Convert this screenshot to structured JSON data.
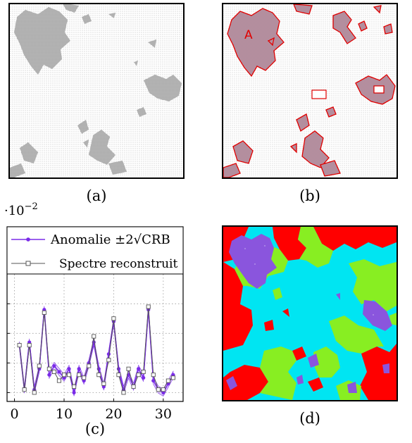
{
  "captions": {
    "a": "(a)",
    "b": "(b)",
    "c": "(c)",
    "d": "(d)"
  },
  "region_label": "A",
  "colors": {
    "gray": "#9a9a9a",
    "outline_red": "#e00000",
    "fill_pink": "#c8a0b0",
    "seg_red": "#ff0000",
    "seg_cyan": "#00e5f2",
    "seg_green": "#88ee22",
    "seg_purple": "#8a55dd",
    "line_purple": "#7a2be8",
    "line_gray": "#555555"
  },
  "chart_data": {
    "type": "line",
    "scale_label": "·10",
    "scale_exponent": "−2",
    "x_ticks": [
      "0",
      "10",
      "20",
      "30"
    ],
    "x_tick_values": [
      0,
      10,
      20,
      30
    ],
    "xlim": [
      -1.5,
      34
    ],
    "ylim": [
      -0.3,
      5.6
    ],
    "y_tick_values": [
      0,
      1,
      2,
      3
    ],
    "grid": true,
    "legend_position": "top",
    "series": [
      {
        "name": "Anomalie ±2√CRB",
        "marker": "dot",
        "x": [
          1,
          2,
          3,
          4,
          5,
          6,
          7,
          8,
          9,
          10,
          11,
          12,
          13,
          14,
          15,
          16,
          17,
          18,
          19,
          20,
          21,
          22,
          23,
          24,
          25,
          26,
          27,
          28,
          29,
          30,
          31,
          32
        ],
        "values": [
          1.6,
          0.1,
          1.7,
          0.1,
          0.8,
          2.8,
          0.6,
          0.9,
          0.7,
          0.5,
          0.8,
          0.0,
          0.8,
          0.4,
          1.0,
          1.7,
          0.8,
          0.2,
          1.3,
          2.4,
          0.8,
          0.1,
          0.6,
          0.2,
          0.8,
          0.5,
          2.8,
          0.4,
          0.1,
          0.0,
          0.3,
          0.6
        ]
      },
      {
        "name": "Spectre reconstruit",
        "marker": "square",
        "x": [
          1,
          2,
          3,
          4,
          5,
          6,
          7,
          8,
          9,
          10,
          11,
          12,
          13,
          14,
          15,
          16,
          17,
          18,
          19,
          20,
          21,
          22,
          23,
          24,
          25,
          26,
          27,
          28,
          29,
          30,
          31,
          32
        ],
        "values": [
          1.6,
          0.1,
          1.6,
          0.0,
          0.9,
          2.7,
          0.8,
          0.7,
          0.4,
          0.6,
          0.6,
          0.2,
          0.6,
          0.5,
          0.9,
          1.9,
          0.6,
          0.3,
          1.1,
          2.5,
          0.6,
          0.0,
          0.8,
          0.2,
          0.6,
          0.7,
          2.9,
          0.6,
          0.1,
          0.1,
          0.4,
          0.5
        ]
      }
    ]
  }
}
